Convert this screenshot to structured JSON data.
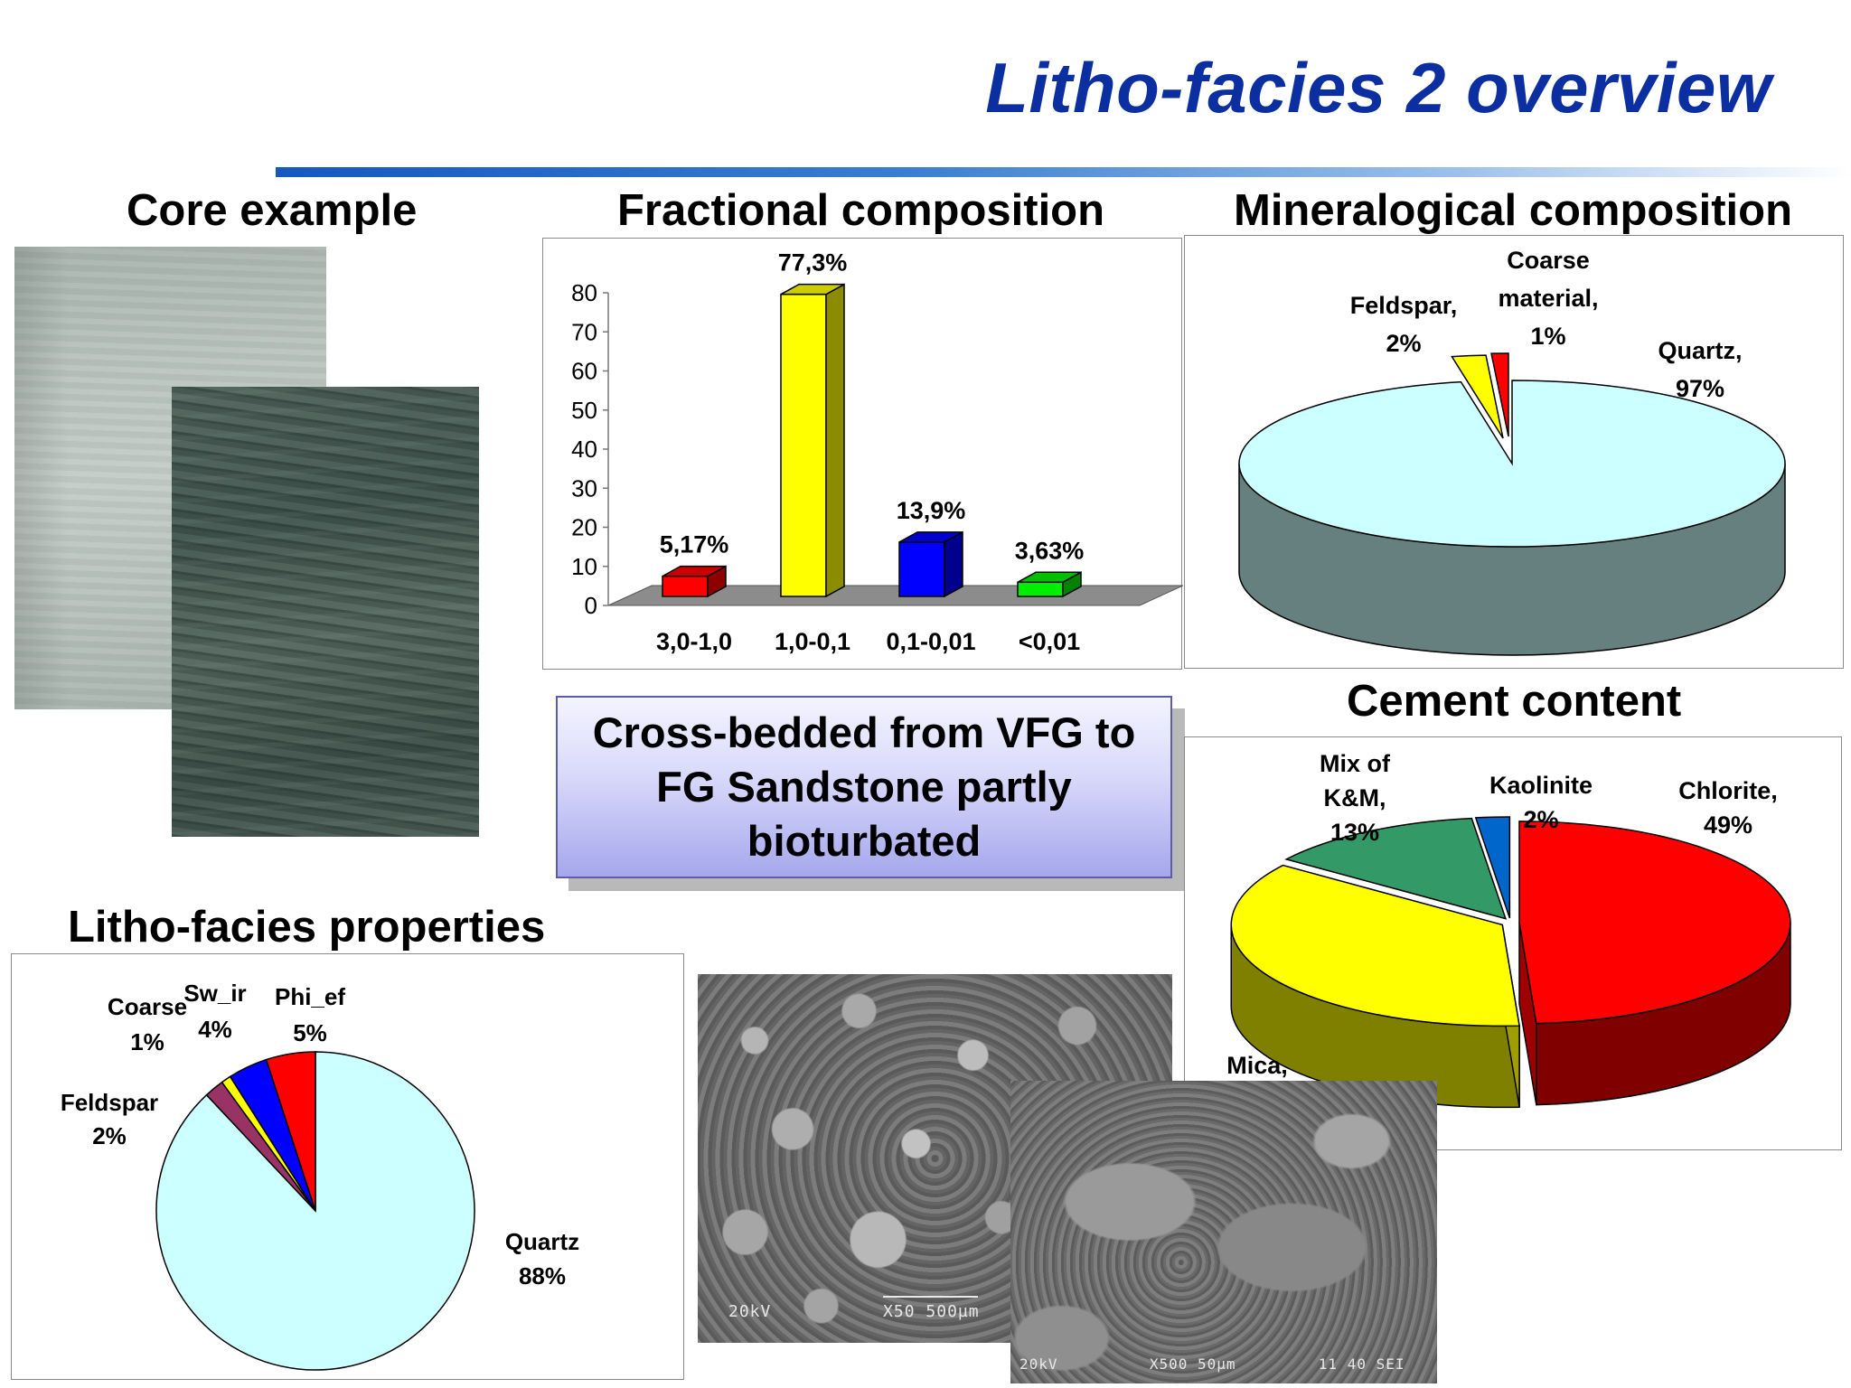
{
  "slide": {
    "title": "Litho-facies 2 overview"
  },
  "sections": {
    "core_example": "Core example",
    "fractional": "Fractional composition",
    "mineralogical": "Mineralogical composition",
    "cement": "Cement content",
    "properties": "Litho-facies properties"
  },
  "callout": {
    "text": "Cross-bedded from VFG to FG Sandstone partly bioturbated"
  },
  "sem": {
    "photo1": {
      "kv": "20kV",
      "scale": "X50 500µm"
    },
    "photo2": {
      "kv": "20kV",
      "scale": "X500 50µm",
      "extra": "11 40 SEI"
    }
  },
  "colors": {
    "title_blue": "#0b2fa0",
    "quartz": "#ccffff",
    "red": "#ff0000",
    "yellow": "#ffff00",
    "blue": "#0000ff",
    "green": "#00ee00",
    "teal": "#339966",
    "plum": "#993366"
  },
  "chart_data": [
    {
      "id": "fractional",
      "type": "bar",
      "title": "Fractional composition",
      "categories": [
        "3,0-1,0",
        "1,0-0,1",
        "0,1-0,01",
        "<0,01"
      ],
      "values": [
        5.17,
        77.3,
        13.9,
        3.63
      ],
      "data_labels": [
        "5,17%",
        "77,3%",
        "13,9%",
        "3,63%"
      ],
      "colors": [
        "#ff0000",
        "#ffff00",
        "#0000ff",
        "#00ee00"
      ],
      "ylim": [
        0,
        80
      ],
      "yticks": [
        "0",
        "10",
        "20",
        "30",
        "40",
        "50",
        "60",
        "70",
        "80"
      ],
      "grid": false,
      "xlabel": "",
      "ylabel": ""
    },
    {
      "id": "mineralogical",
      "type": "pie",
      "title": "Mineralogical composition",
      "labels": [
        "Quartz,",
        "Feldspar,",
        "Coarse material,"
      ],
      "values": [
        97,
        2,
        1
      ],
      "data_labels": [
        "97%",
        "2%",
        "1%"
      ],
      "colors": [
        "#ccffff",
        "#ffff00",
        "#ff0000"
      ]
    },
    {
      "id": "cement",
      "type": "pie",
      "title": "Cement content",
      "labels": [
        "Chlorite,",
        "Mica,",
        "Mix of K&M,",
        "Kaolinite"
      ],
      "values": [
        49,
        36,
        13,
        2
      ],
      "data_labels": [
        "49%",
        "36%",
        "13%",
        "2%"
      ],
      "colors": [
        "#ff0000",
        "#ffff00",
        "#339966",
        "#0066cc"
      ]
    },
    {
      "id": "properties",
      "type": "pie",
      "title": "Litho-facies properties",
      "labels": [
        "Quartz",
        "Feldspar",
        "Coarse",
        "Sw_ir",
        "Phi_ef"
      ],
      "values": [
        88,
        2,
        1,
        4,
        5
      ],
      "data_labels": [
        "88%",
        "2%",
        "1%",
        "4%",
        "5%"
      ],
      "colors": [
        "#ccffff",
        "#993366",
        "#ffff00",
        "#0000ff",
        "#ff0000"
      ]
    }
  ]
}
